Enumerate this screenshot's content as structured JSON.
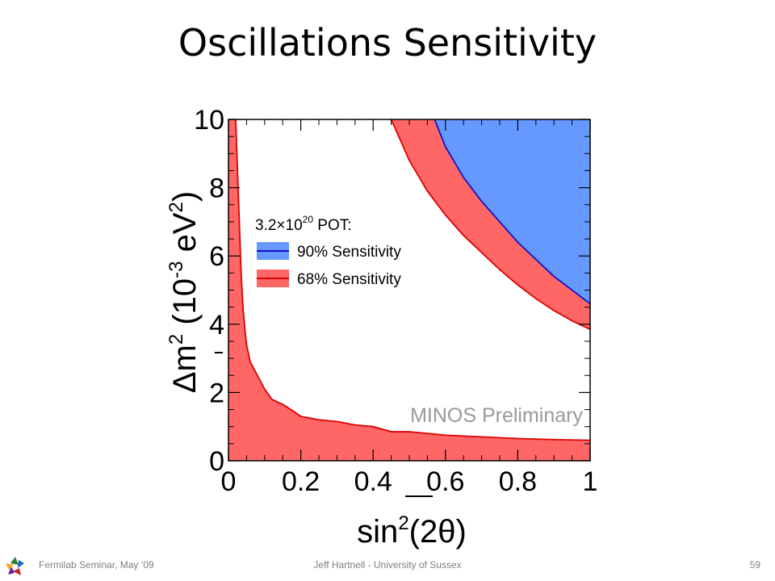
{
  "slide": {
    "title": "Oscillations Sensitivity",
    "footer_left": "Fermilab Seminar, May ‘09",
    "footer_center": "Jeff Hartnell - University of Sussex",
    "page_number": "59"
  },
  "chart_data": {
    "type": "area",
    "title": "",
    "xlabel_parts": {
      "main": "sin",
      "sup": "2",
      "arg": "(2θ)"
    },
    "ylabel_parts": {
      "main": "Δm",
      "sup": "2",
      "unit_open": " (10",
      "unit_sup": "-3",
      "unit_mid": " eV",
      "unit_sup2": "2",
      "unit_close": ")"
    },
    "xlim": [
      0,
      1
    ],
    "ylim": [
      0,
      10
    ],
    "xticks": [
      "0",
      "0.2",
      "0.4",
      "0.6",
      "0.8",
      "1"
    ],
    "yticks": [
      "0",
      "2",
      "4",
      "6",
      "8",
      "10"
    ],
    "grid": false,
    "legend_position": "top-left",
    "legend_header": {
      "base": "3.2",
      "times": "×",
      "mant": "10",
      "exp": "20",
      "suffix": " POT:"
    },
    "annotation": "MINOS Preliminary",
    "colors": {
      "band90_fill": "#6699ff",
      "band90_line": "#1111cc",
      "band68_fill": "#ff6666",
      "band68_line": "#dd0000"
    },
    "series": [
      {
        "name": "90% Sensitivity",
        "region": "upper-right",
        "boundary": [
          [
            0.57,
            10
          ],
          [
            0.6,
            9.2
          ],
          [
            0.65,
            8.3
          ],
          [
            0.7,
            7.6
          ],
          [
            0.75,
            7.0
          ],
          [
            0.8,
            6.4
          ],
          [
            0.85,
            5.9
          ],
          [
            0.9,
            5.4
          ],
          [
            0.95,
            5.0
          ],
          [
            1.0,
            4.6
          ]
        ]
      },
      {
        "name": "68% Sensitivity",
        "region": "upper-right",
        "boundary": [
          [
            0.45,
            10
          ],
          [
            0.5,
            8.8
          ],
          [
            0.55,
            7.9
          ],
          [
            0.6,
            7.2
          ],
          [
            0.65,
            6.6
          ],
          [
            0.7,
            6.1
          ],
          [
            0.75,
            5.6
          ],
          [
            0.8,
            5.15
          ],
          [
            0.85,
            4.75
          ],
          [
            0.9,
            4.4
          ],
          [
            0.95,
            4.1
          ],
          [
            1.0,
            3.85
          ]
        ]
      },
      {
        "name": "68% Sensitivity",
        "region": "lower-left",
        "boundary": [
          [
            0.02,
            10
          ],
          [
            0.025,
            8.5
          ],
          [
            0.03,
            7.0
          ],
          [
            0.035,
            5.5
          ],
          [
            0.04,
            4.5
          ],
          [
            0.045,
            3.9
          ],
          [
            0.05,
            3.4
          ],
          [
            0.06,
            2.9
          ],
          [
            0.08,
            2.5
          ],
          [
            0.1,
            2.1
          ],
          [
            0.12,
            1.8
          ],
          [
            0.15,
            1.65
          ],
          [
            0.18,
            1.45
          ],
          [
            0.2,
            1.3
          ],
          [
            0.25,
            1.2
          ],
          [
            0.3,
            1.15
          ],
          [
            0.35,
            1.05
          ],
          [
            0.4,
            1.0
          ],
          [
            0.45,
            0.85
          ],
          [
            0.5,
            0.85
          ],
          [
            0.55,
            0.8
          ],
          [
            0.6,
            0.75
          ],
          [
            0.7,
            0.7
          ],
          [
            0.8,
            0.65
          ],
          [
            0.9,
            0.62
          ],
          [
            1.0,
            0.6
          ]
        ]
      }
    ]
  }
}
